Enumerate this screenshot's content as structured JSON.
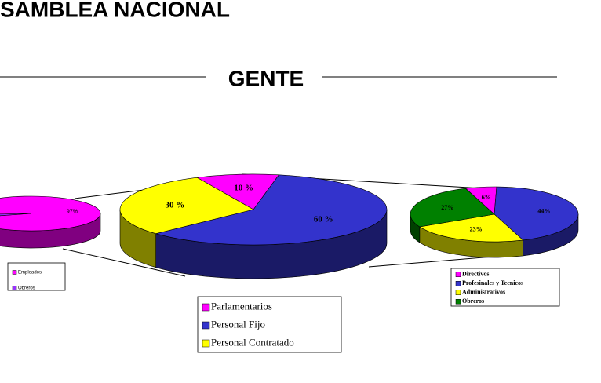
{
  "header": {
    "title": "SAMBLEA NACIONAL",
    "subtitle": "GENTE"
  },
  "chart_data": [
    {
      "type": "pie",
      "categories": [
        "Empleados",
        "Obreros"
      ],
      "values": [
        97,
        3
      ],
      "value_labels": [
        "97%",
        null
      ],
      "colors": [
        "#ff00ff",
        "#9933ff"
      ]
    },
    {
      "type": "pie",
      "categories": [
        "Parlamentarios",
        "Personal Fijo",
        "Personal Contratado"
      ],
      "values": [
        10,
        60,
        30
      ],
      "value_labels": [
        "10 %",
        "60 %",
        "30 %"
      ],
      "colors": [
        "#ff00ff",
        "#3333cc",
        "#ffff00"
      ]
    },
    {
      "type": "pie",
      "categories": [
        "Directivos",
        "Profesinales y Tecnicos",
        "Administrativos",
        "Obreros"
      ],
      "values": [
        6,
        44,
        23,
        27
      ],
      "value_labels": [
        "6%",
        "44%",
        "23%",
        "27%"
      ],
      "colors": [
        "#ff00ff",
        "#3333cc",
        "#ffff00",
        "#008000"
      ]
    }
  ]
}
